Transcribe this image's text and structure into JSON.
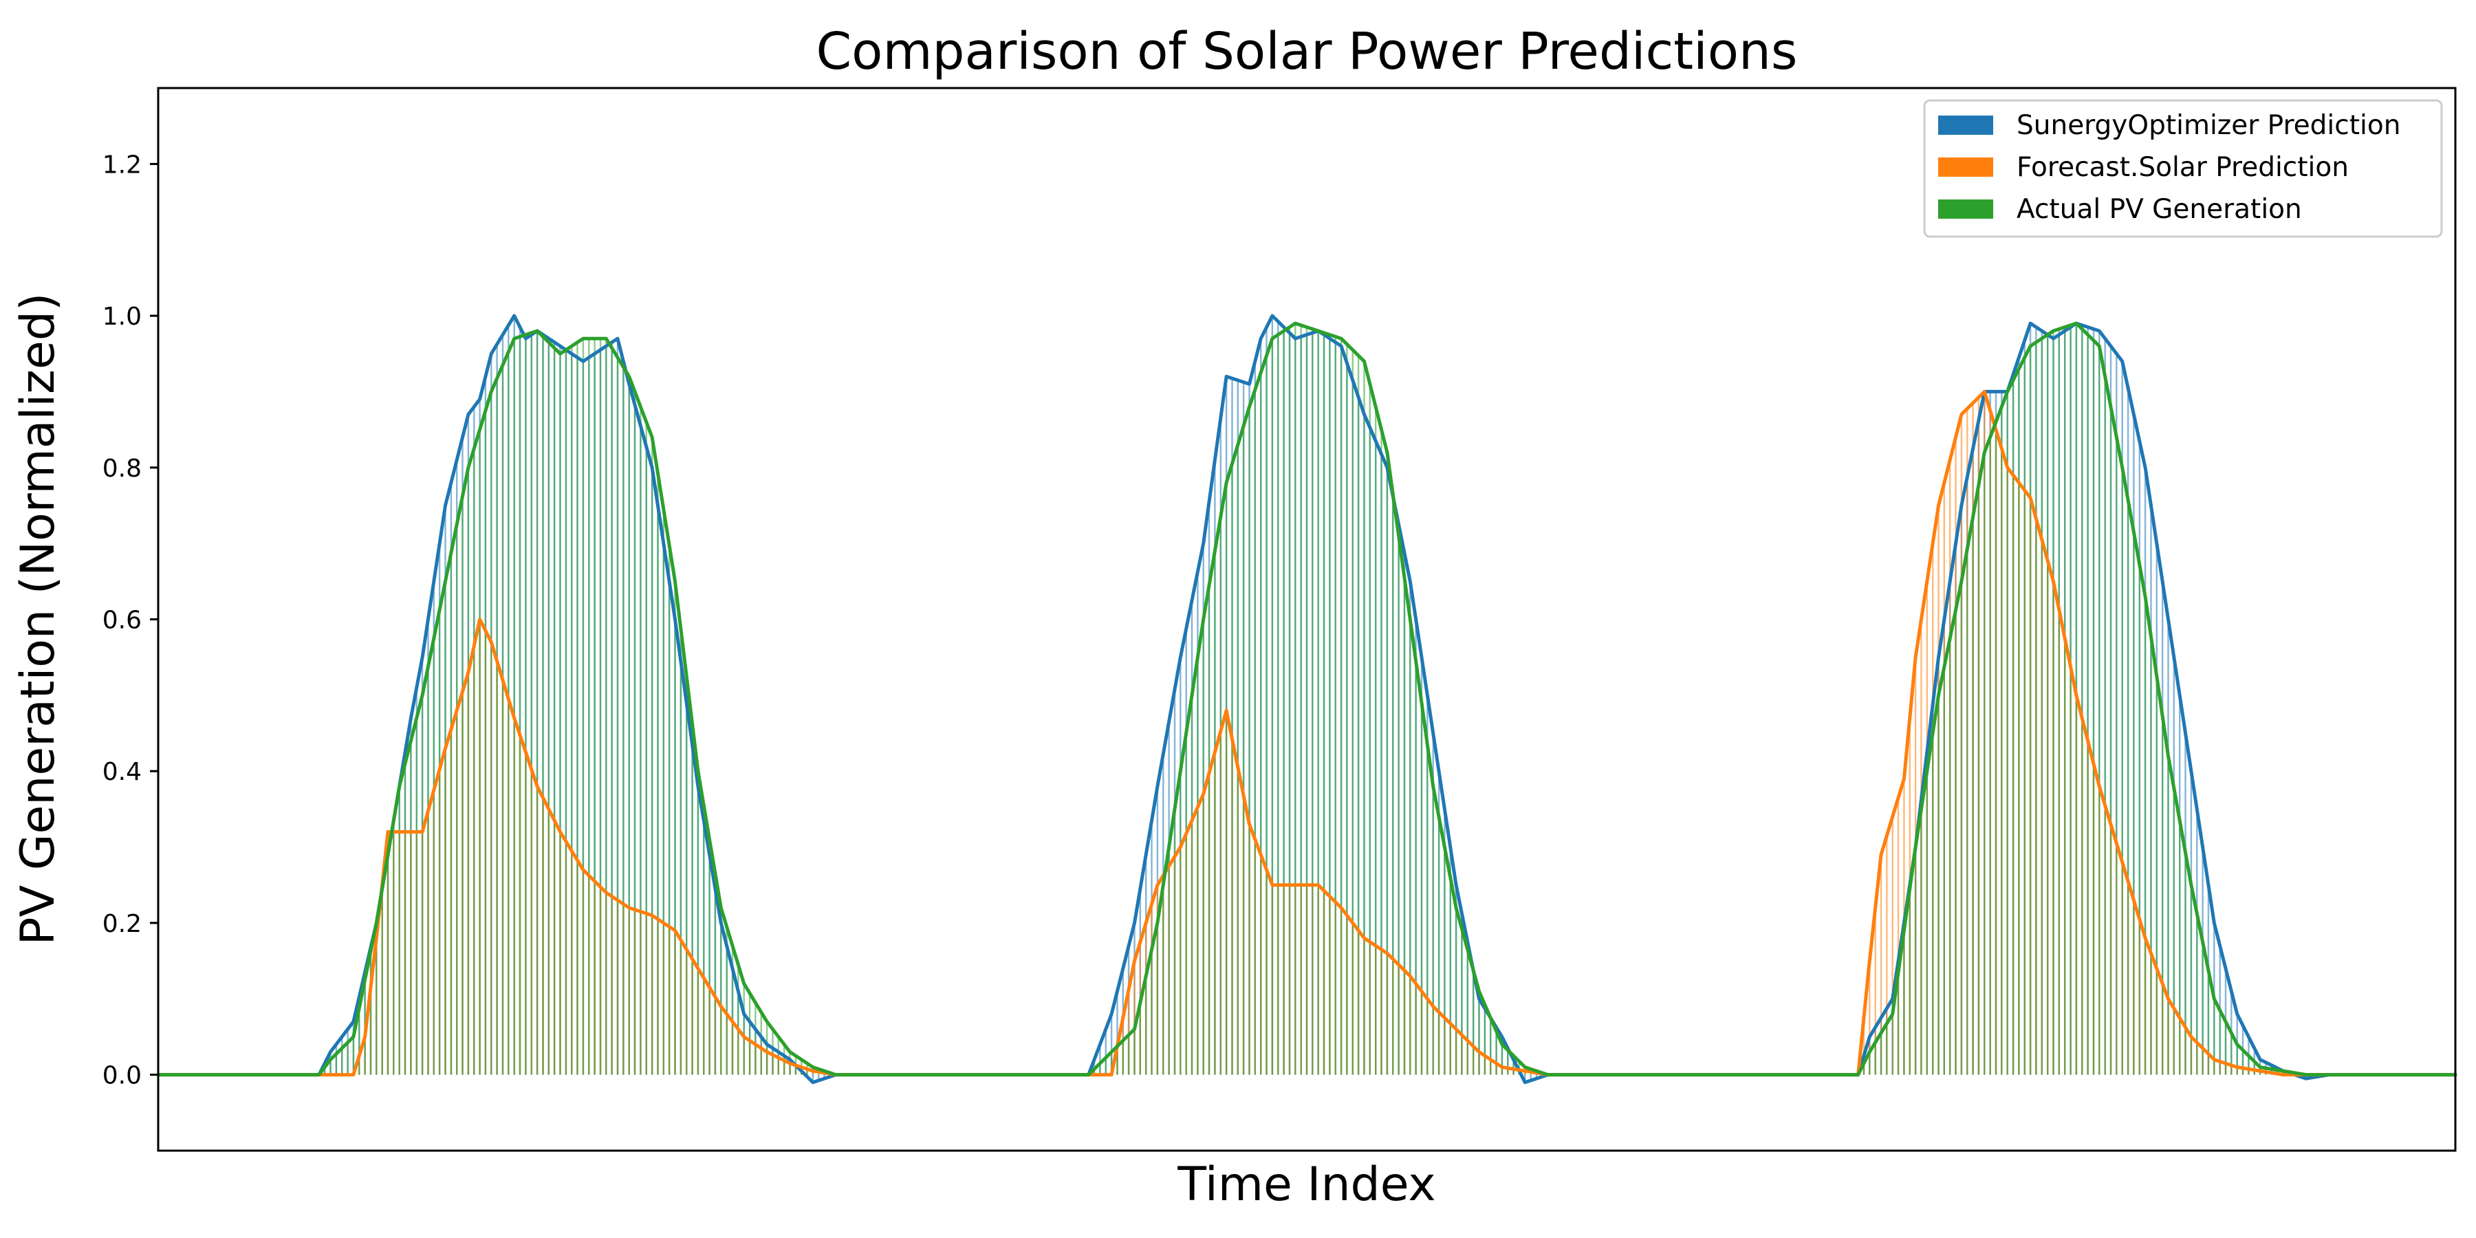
{
  "chart_data": {
    "type": "line",
    "title": "Comparison of Solar Power Predictions",
    "xlabel": "Time Index",
    "ylabel": "PV Generation (Normalized)",
    "xlim": [
      0,
      200
    ],
    "ylim": [
      -0.1,
      1.3
    ],
    "yticks": [
      0.0,
      0.2,
      0.4,
      0.6,
      0.8,
      1.0,
      1.2
    ],
    "ytick_labels": [
      "0.0",
      "0.2",
      "0.4",
      "0.6",
      "0.8",
      "1.0",
      "1.2"
    ],
    "xticks_visible": false,
    "grid": false,
    "legend_position": "top-right",
    "legend": [
      {
        "name": "SunergyOptimizer Prediction",
        "color": "#1f77b4"
      },
      {
        "name": "Forecast.Solar Prediction",
        "color": "#ff7f0e"
      },
      {
        "name": "Actual PV Generation",
        "color": "#2ca02c"
      }
    ],
    "series": [
      {
        "name": "SunergyOptimizer Prediction",
        "color": "#1f77b4",
        "x": [
          0,
          14,
          15,
          17,
          19,
          21,
          22,
          23,
          24,
          25,
          27,
          28,
          29,
          31,
          32,
          33,
          35,
          36,
          37,
          39,
          40,
          41,
          43,
          45,
          47,
          49,
          51,
          53,
          55,
          57,
          59,
          61,
          63,
          65,
          67,
          69,
          71,
          81,
          82,
          83,
          85,
          87,
          89,
          91,
          93,
          95,
          96,
          97,
          99,
          101,
          102,
          103,
          105,
          107,
          109,
          111,
          113,
          115,
          117,
          119,
          121,
          123,
          125,
          127,
          129,
          131,
          133,
          135,
          137,
          139,
          148,
          149,
          151,
          153,
          155,
          157,
          159,
          161,
          163,
          165,
          167,
          169,
          171,
          173,
          175,
          177,
          179,
          181,
          183,
          185,
          187,
          189,
          191,
          193,
          195,
          197,
          200
        ],
        "y": [
          0,
          0,
          0.03,
          0.07,
          0.2,
          0.38,
          0.47,
          0.55,
          0.65,
          0.75,
          0.87,
          0.89,
          0.95,
          1.0,
          0.97,
          0.98,
          0.96,
          0.95,
          0.94,
          0.96,
          0.97,
          0.91,
          0.8,
          0.6,
          0.38,
          0.2,
          0.08,
          0.04,
          0.02,
          -0.01,
          0,
          0,
          0,
          0,
          0,
          0,
          0,
          0,
          0.04,
          0.08,
          0.2,
          0.38,
          0.55,
          0.7,
          0.92,
          0.91,
          0.97,
          1.0,
          0.97,
          0.98,
          0.97,
          0.96,
          0.87,
          0.8,
          0.65,
          0.45,
          0.25,
          0.1,
          0.05,
          -0.01,
          0,
          0,
          0,
          0,
          0,
          0,
          0,
          0,
          0,
          0,
          0,
          0.05,
          0.1,
          0.3,
          0.55,
          0.75,
          0.9,
          0.9,
          0.99,
          0.97,
          0.99,
          0.98,
          0.94,
          0.8,
          0.6,
          0.4,
          0.2,
          0.08,
          0.02,
          0.005,
          -0.005,
          0,
          0,
          0,
          0,
          0,
          0
        ]
      },
      {
        "name": "Forecast.Solar Prediction",
        "color": "#ff7f0e",
        "x": [
          0,
          16,
          17,
          18,
          19,
          20,
          22,
          23,
          25,
          27,
          28,
          29,
          30,
          31,
          33,
          35,
          37,
          39,
          41,
          43,
          45,
          47,
          49,
          51,
          53,
          55,
          57,
          59,
          61,
          63,
          65,
          67,
          69,
          71,
          81,
          83,
          85,
          87,
          89,
          91,
          93,
          95,
          97,
          99,
          101,
          103,
          105,
          107,
          109,
          111,
          113,
          115,
          117,
          119,
          121,
          123,
          125,
          127,
          129,
          131,
          133,
          135,
          137,
          148,
          149,
          150,
          151,
          152,
          153,
          155,
          157,
          159,
          161,
          163,
          165,
          167,
          169,
          171,
          173,
          175,
          177,
          179,
          181,
          183,
          185,
          187,
          189,
          191,
          193,
          195,
          200
        ],
        "y": [
          0,
          0,
          0,
          0.05,
          0.18,
          0.32,
          0.32,
          0.32,
          0.43,
          0.53,
          0.6,
          0.57,
          0.52,
          0.47,
          0.38,
          0.32,
          0.27,
          0.24,
          0.22,
          0.21,
          0.19,
          0.14,
          0.09,
          0.05,
          0.03,
          0.015,
          0.005,
          0,
          0,
          0,
          0,
          0,
          0,
          0,
          0,
          0,
          0.15,
          0.25,
          0.3,
          0.37,
          0.48,
          0.33,
          0.25,
          0.25,
          0.25,
          0.22,
          0.18,
          0.16,
          0.13,
          0.09,
          0.06,
          0.03,
          0.01,
          0.005,
          0,
          0,
          0,
          0,
          0,
          0,
          0,
          0,
          0,
          0,
          0.15,
          0.29,
          0.34,
          0.39,
          0.55,
          0.75,
          0.87,
          0.9,
          0.8,
          0.76,
          0.65,
          0.5,
          0.38,
          0.28,
          0.18,
          0.1,
          0.05,
          0.02,
          0.01,
          0.005,
          0,
          0,
          0,
          0,
          0,
          0,
          0
        ],
        "note_dropped": null
      },
      {
        "name": "Actual PV Generation",
        "color": "#2ca02c",
        "x": [
          0,
          14,
          15,
          17,
          19,
          21,
          23,
          25,
          27,
          29,
          31,
          33,
          35,
          37,
          39,
          41,
          43,
          45,
          47,
          49,
          51,
          53,
          55,
          57,
          59,
          61,
          63,
          65,
          67,
          69,
          71,
          81,
          83,
          85,
          87,
          89,
          91,
          93,
          95,
          97,
          99,
          101,
          103,
          105,
          107,
          109,
          111,
          113,
          115,
          117,
          119,
          121,
          123,
          125,
          127,
          129,
          131,
          133,
          135,
          137,
          139,
          148,
          149,
          151,
          153,
          155,
          157,
          159,
          161,
          163,
          165,
          167,
          169,
          171,
          173,
          175,
          177,
          179,
          181,
          183,
          185,
          187,
          189,
          191,
          193,
          195,
          197,
          200
        ],
        "y": [
          0,
          0,
          0.02,
          0.05,
          0.2,
          0.38,
          0.5,
          0.65,
          0.8,
          0.9,
          0.97,
          0.98,
          0.95,
          0.97,
          0.97,
          0.92,
          0.84,
          0.65,
          0.4,
          0.22,
          0.12,
          0.07,
          0.03,
          0.01,
          0,
          0,
          0,
          0,
          0,
          0,
          0,
          0,
          0.03,
          0.06,
          0.2,
          0.4,
          0.6,
          0.78,
          0.88,
          0.97,
          0.99,
          0.98,
          0.97,
          0.94,
          0.82,
          0.6,
          0.38,
          0.22,
          0.11,
          0.04,
          0.01,
          0,
          0,
          0,
          0,
          0,
          0,
          0,
          0,
          0,
          0,
          0,
          0.03,
          0.08,
          0.3,
          0.5,
          0.65,
          0.82,
          0.9,
          0.96,
          0.98,
          0.99,
          0.96,
          0.8,
          0.63,
          0.42,
          0.25,
          0.1,
          0.04,
          0.01,
          0.005,
          0,
          0,
          0,
          0,
          0,
          0,
          0
        ]
      }
    ]
  }
}
